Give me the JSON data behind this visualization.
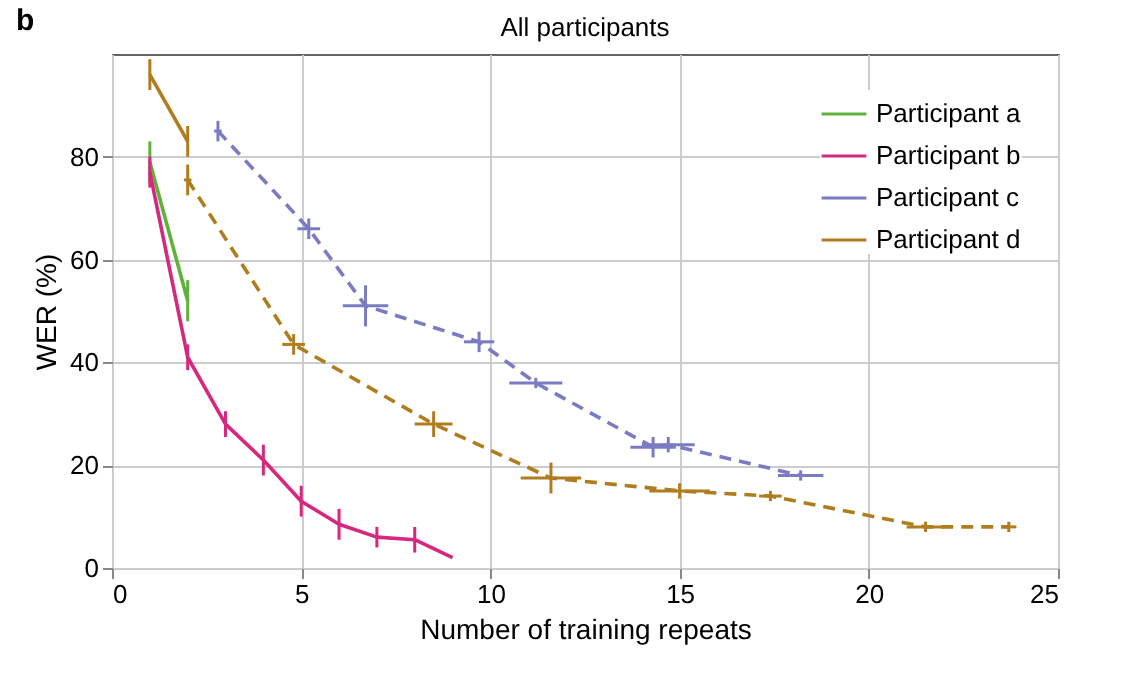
{
  "chart_data": {
    "type": "line",
    "title": "All participants",
    "xlabel": "Number of training repeats",
    "ylabel": "WER (%)",
    "annotations": [
      "b"
    ],
    "xlim": [
      0,
      25
    ],
    "xticks": [
      0,
      5,
      10,
      15,
      20,
      25
    ],
    "ylim": [
      0,
      100
    ],
    "yticks": [
      0,
      20,
      40,
      60,
      80
    ],
    "grid": true,
    "legend": "top right",
    "marker": "none",
    "series": [
      {
        "name": "Participant a",
        "color": "#5fb13a",
        "line_style": "solid",
        "x": [
          1,
          2
        ],
        "values": [
          79,
          52
        ],
        "errors": [
          4,
          4
        ]
      },
      {
        "name": "Participant b",
        "color": "#d6287f",
        "line_style": "solid",
        "x": [
          1,
          2,
          3,
          4,
          5,
          6,
          7,
          8,
          9
        ],
        "values": [
          77,
          41,
          28,
          21,
          13,
          8.5,
          6,
          5.5,
          2
        ],
        "errors": [
          3,
          2.5,
          2.5,
          3,
          3,
          3,
          2,
          2.5,
          null
        ]
      },
      {
        "name": "Participant c",
        "color": "#7b7bc4",
        "line_style": "dashed",
        "x": [
          2.8,
          5.2,
          6.7,
          9.7,
          11.2,
          14.3,
          14.7,
          18.2
        ],
        "values": [
          85,
          66,
          51,
          44,
          36,
          23.5,
          24,
          18
        ],
        "errors": [
          2,
          2,
          4,
          2,
          1,
          2,
          1.5,
          1
        ],
        "xerrors": [
          0.1,
          0.3,
          0.6,
          0.4,
          0.7,
          0.6,
          0.7,
          0.6
        ]
      },
      {
        "name": "Participant d",
        "color": "#b07d1e",
        "line_style": "solid",
        "x": [
          1,
          2
        ],
        "values": [
          96,
          83
        ],
        "errors": [
          3,
          3
        ]
      },
      {
        "color": "#b07d1e",
        "line_style": "dashed",
        "x": [
          2,
          4.8,
          8.5,
          11.6,
          15,
          17.4,
          21.5,
          23.7
        ],
        "values": [
          75.5,
          43.5,
          28,
          17.5,
          15,
          14,
          8,
          8
        ],
        "errors": [
          3,
          2,
          2.5,
          3,
          1.5,
          1,
          1,
          1
        ],
        "xerrors": [
          0.1,
          0.3,
          0.5,
          0.8,
          0.8,
          0.3,
          0.5,
          0.2
        ]
      }
    ]
  }
}
